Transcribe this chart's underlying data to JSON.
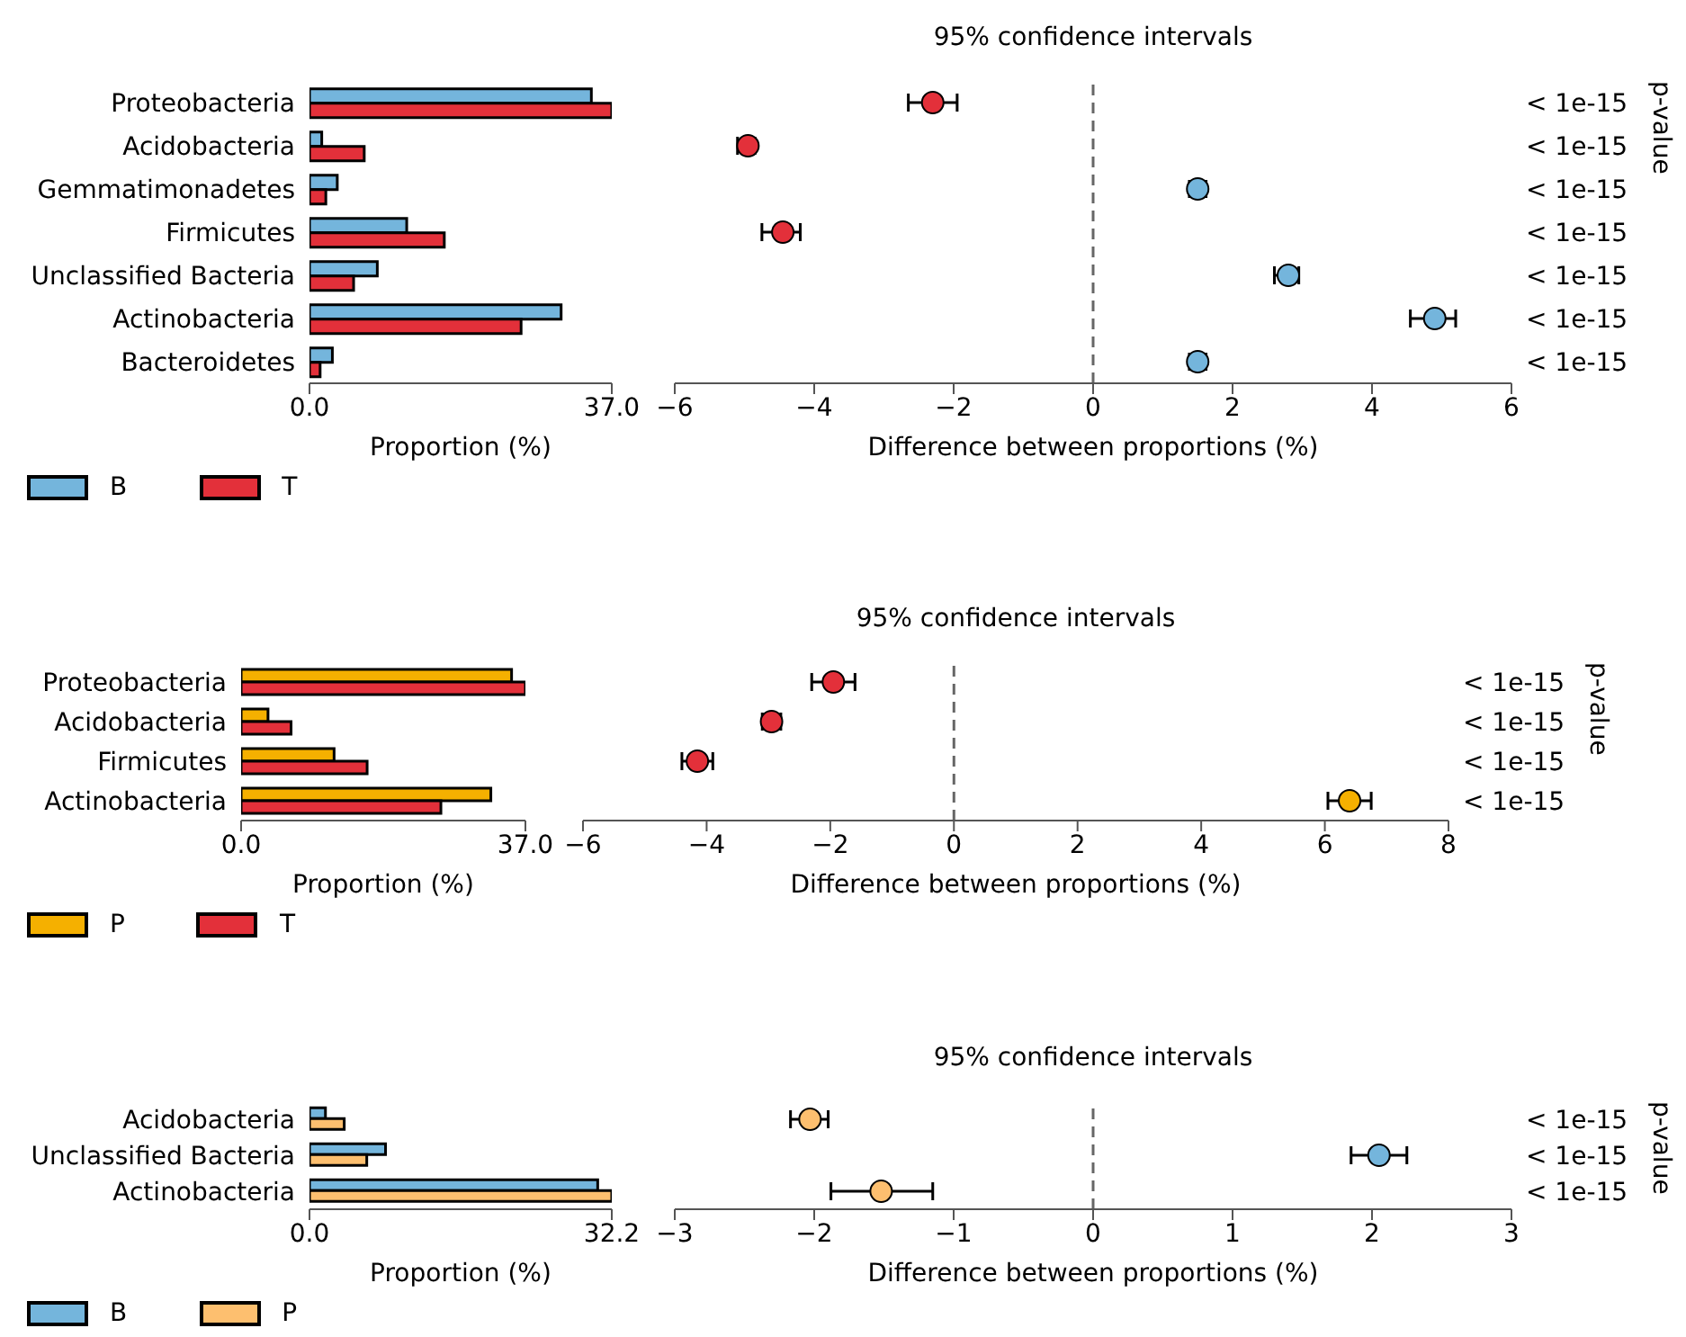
{
  "chart_data": [
    {
      "type": "bar",
      "orientation": "horizontal",
      "categories": [
        "Proteobacteria",
        "Acidobacteria",
        "Gemmatimonadetes",
        "Firmicutes",
        "Unclassified Bacteria",
        "Actinobacteria",
        "Bacteroidetes"
      ],
      "series": [
        {
          "name": "B",
          "color": "#74b5dc",
          "values": [
            34.5,
            1.5,
            3.4,
            11.9,
            8.3,
            30.8,
            2.8
          ]
        },
        {
          "name": "T",
          "color": "#e3303a",
          "values": [
            37.0,
            6.7,
            2.0,
            16.5,
            5.4,
            25.9,
            1.3
          ]
        }
      ],
      "xlim": [
        0,
        37
      ],
      "xticks": [
        {
          "value": 0,
          "label": "0.0"
        },
        {
          "value": 37,
          "label": "37.0"
        }
      ],
      "xlabel": "Proportion (%)",
      "legend": "bottom left"
    },
    {
      "type": "scatter",
      "orientation": "horizontal",
      "title": "95% confidence intervals",
      "categories": [
        null,
        null,
        null,
        null,
        null,
        null,
        null
      ],
      "values": [
        -2.3,
        -4.95,
        1.5,
        -4.45,
        2.8,
        4.9,
        1.5
      ],
      "errors": [
        [
          -2.65,
          -1.95
        ],
        [
          -5.1,
          -4.85
        ],
        [
          1.38,
          1.62
        ],
        [
          -4.75,
          -4.2
        ],
        [
          2.6,
          2.95
        ],
        [
          4.55,
          5.2
        ],
        [
          1.38,
          1.62
        ]
      ],
      "colors": [
        "#e3303a",
        "#e3303a",
        "#74b5dc",
        "#e3303a",
        "#74b5dc",
        "#74b5dc",
        "#74b5dc"
      ],
      "y2_categories": [
        "< 1e-15",
        "< 1e-15",
        "< 1e-15",
        "< 1e-15",
        "< 1e-15",
        "< 1e-15",
        "< 1e-15"
      ],
      "y2label": "p-value",
      "xlim": [
        -6,
        6
      ],
      "xticks": [
        -6,
        -4,
        -2,
        0,
        2,
        4,
        6
      ],
      "xlabel": "Difference between proportions (%)",
      "marker": "circle",
      "tick_labels": "x",
      "ref_lines": [
        {
          "axis": "x",
          "value": 0,
          "line_style": "dashed",
          "color": "#666666"
        }
      ]
    },
    {
      "type": "bar",
      "orientation": "horizontal",
      "categories": [
        "Proteobacteria",
        "Acidobacteria",
        "Firmicutes",
        "Actinobacteria"
      ],
      "series": [
        {
          "name": "P",
          "color": "#f5b000",
          "values": [
            35.2,
            3.5,
            12.1,
            32.5
          ]
        },
        {
          "name": "T",
          "color": "#e3303a",
          "values": [
            37.0,
            6.5,
            16.4,
            26.0
          ]
        }
      ],
      "xlim": [
        0,
        37
      ],
      "xticks": [
        {
          "value": 0,
          "label": "0.0"
        },
        {
          "value": 37,
          "label": "37.0"
        }
      ],
      "xlabel": "Proportion (%)",
      "legend": "bottom left"
    },
    {
      "type": "scatter",
      "orientation": "horizontal",
      "title": "95% confidence intervals",
      "categories": [
        null,
        null,
        null,
        null
      ],
      "values": [
        -1.95,
        -2.95,
        -4.15,
        6.4
      ],
      "errors": [
        [
          -2.3,
          -1.6
        ],
        [
          -3.1,
          -2.8
        ],
        [
          -4.4,
          -3.9
        ],
        [
          6.05,
          6.75
        ]
      ],
      "colors": [
        "#e3303a",
        "#e3303a",
        "#e3303a",
        "#f5b000"
      ],
      "y2_categories": [
        "< 1e-15",
        "< 1e-15",
        "< 1e-15",
        "< 1e-15"
      ],
      "y2label": "p-value",
      "xlim": [
        -6,
        8
      ],
      "xticks": [
        -6,
        -4,
        -2,
        0,
        2,
        4,
        6,
        8
      ],
      "xlabel": "Difference between proportions (%)",
      "marker": "circle",
      "tick_labels": "x",
      "ref_lines": [
        {
          "axis": "x",
          "value": 0,
          "line_style": "dashed",
          "color": "#666666"
        }
      ]
    },
    {
      "type": "bar",
      "orientation": "horizontal",
      "categories": [
        "Acidobacteria",
        "Unclassified Bacteria",
        "Actinobacteria"
      ],
      "series": [
        {
          "name": "B",
          "color": "#74b5dc",
          "values": [
            1.7,
            8.1,
            30.7
          ]
        },
        {
          "name": "P",
          "color": "#fdbf6f",
          "values": [
            3.7,
            6.1,
            32.2
          ]
        }
      ],
      "xlim": [
        0,
        32.2
      ],
      "xticks": [
        {
          "value": 0,
          "label": "0.0"
        },
        {
          "value": 32.2,
          "label": "32.2"
        }
      ],
      "xlabel": "Proportion (%)",
      "legend": "bottom left"
    },
    {
      "type": "scatter",
      "orientation": "horizontal",
      "title": "95% confidence intervals",
      "categories": [
        null,
        null,
        null
      ],
      "values": [
        -2.03,
        2.05,
        -1.52
      ],
      "errors": [
        [
          -2.17,
          -1.9
        ],
        [
          1.85,
          2.25
        ],
        [
          -1.88,
          -1.15
        ]
      ],
      "colors": [
        "#fdbf6f",
        "#74b5dc",
        "#fdbf6f"
      ],
      "y2_categories": [
        "< 1e-15",
        "< 1e-15",
        "< 1e-15"
      ],
      "y2label": "p-value",
      "xlim": [
        -3,
        3
      ],
      "xticks": [
        -3,
        -2,
        -1,
        0,
        1,
        2,
        3
      ],
      "xlabel": "Difference between proportions (%)",
      "marker": "circle",
      "tick_labels": "x",
      "ref_lines": [
        {
          "axis": "x",
          "value": 0,
          "line_style": "dashed",
          "color": "#666666"
        }
      ]
    }
  ]
}
